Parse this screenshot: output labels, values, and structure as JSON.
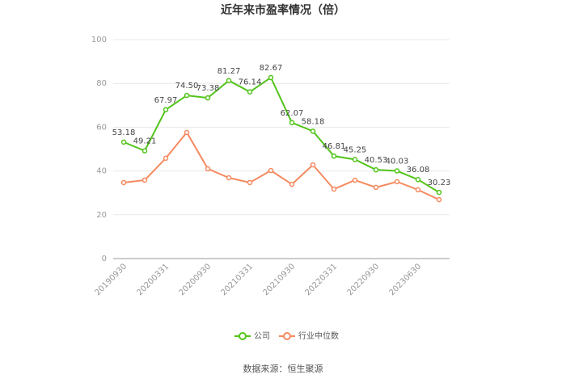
{
  "chart_data": {
    "type": "line",
    "title": "近年来市盈率情况（倍）",
    "categories": [
      "20190930",
      null,
      "20200331",
      null,
      "20200930",
      null,
      "20210331",
      null,
      "20210930",
      null,
      "20220331",
      null,
      "20220930",
      null,
      "20230630",
      null
    ],
    "series": [
      {
        "name": "公司",
        "color": "#52c41a",
        "values": [
          53.18,
          49.21,
          67.97,
          74.5,
          73.38,
          81.27,
          76.14,
          82.67,
          62.07,
          58.18,
          46.81,
          45.25,
          40.53,
          40.03,
          36.08,
          30.23
        ],
        "value_labels": [
          "53.18",
          "49.21",
          "67.97",
          "74.50",
          "73.38",
          "81.27",
          "76.14",
          "82.67",
          "62.07",
          "58.18",
          "46.81",
          "45.25",
          "40.53",
          "40.03",
          "36.08",
          "30.23"
        ]
      },
      {
        "name": "行业中位数",
        "color": "#f5895f",
        "values": [
          34.7,
          35.8,
          45.8,
          57.6,
          41.0,
          36.9,
          34.7,
          40.2,
          33.9,
          42.8,
          31.7,
          35.8,
          32.5,
          35.1,
          31.4,
          26.9
        ]
      }
    ],
    "ylim": [
      0,
      100
    ],
    "yticks": [
      0,
      20,
      40,
      60,
      80,
      100
    ],
    "grid": true,
    "legend": "bottom",
    "source": "数据来源：恒生聚源"
  }
}
